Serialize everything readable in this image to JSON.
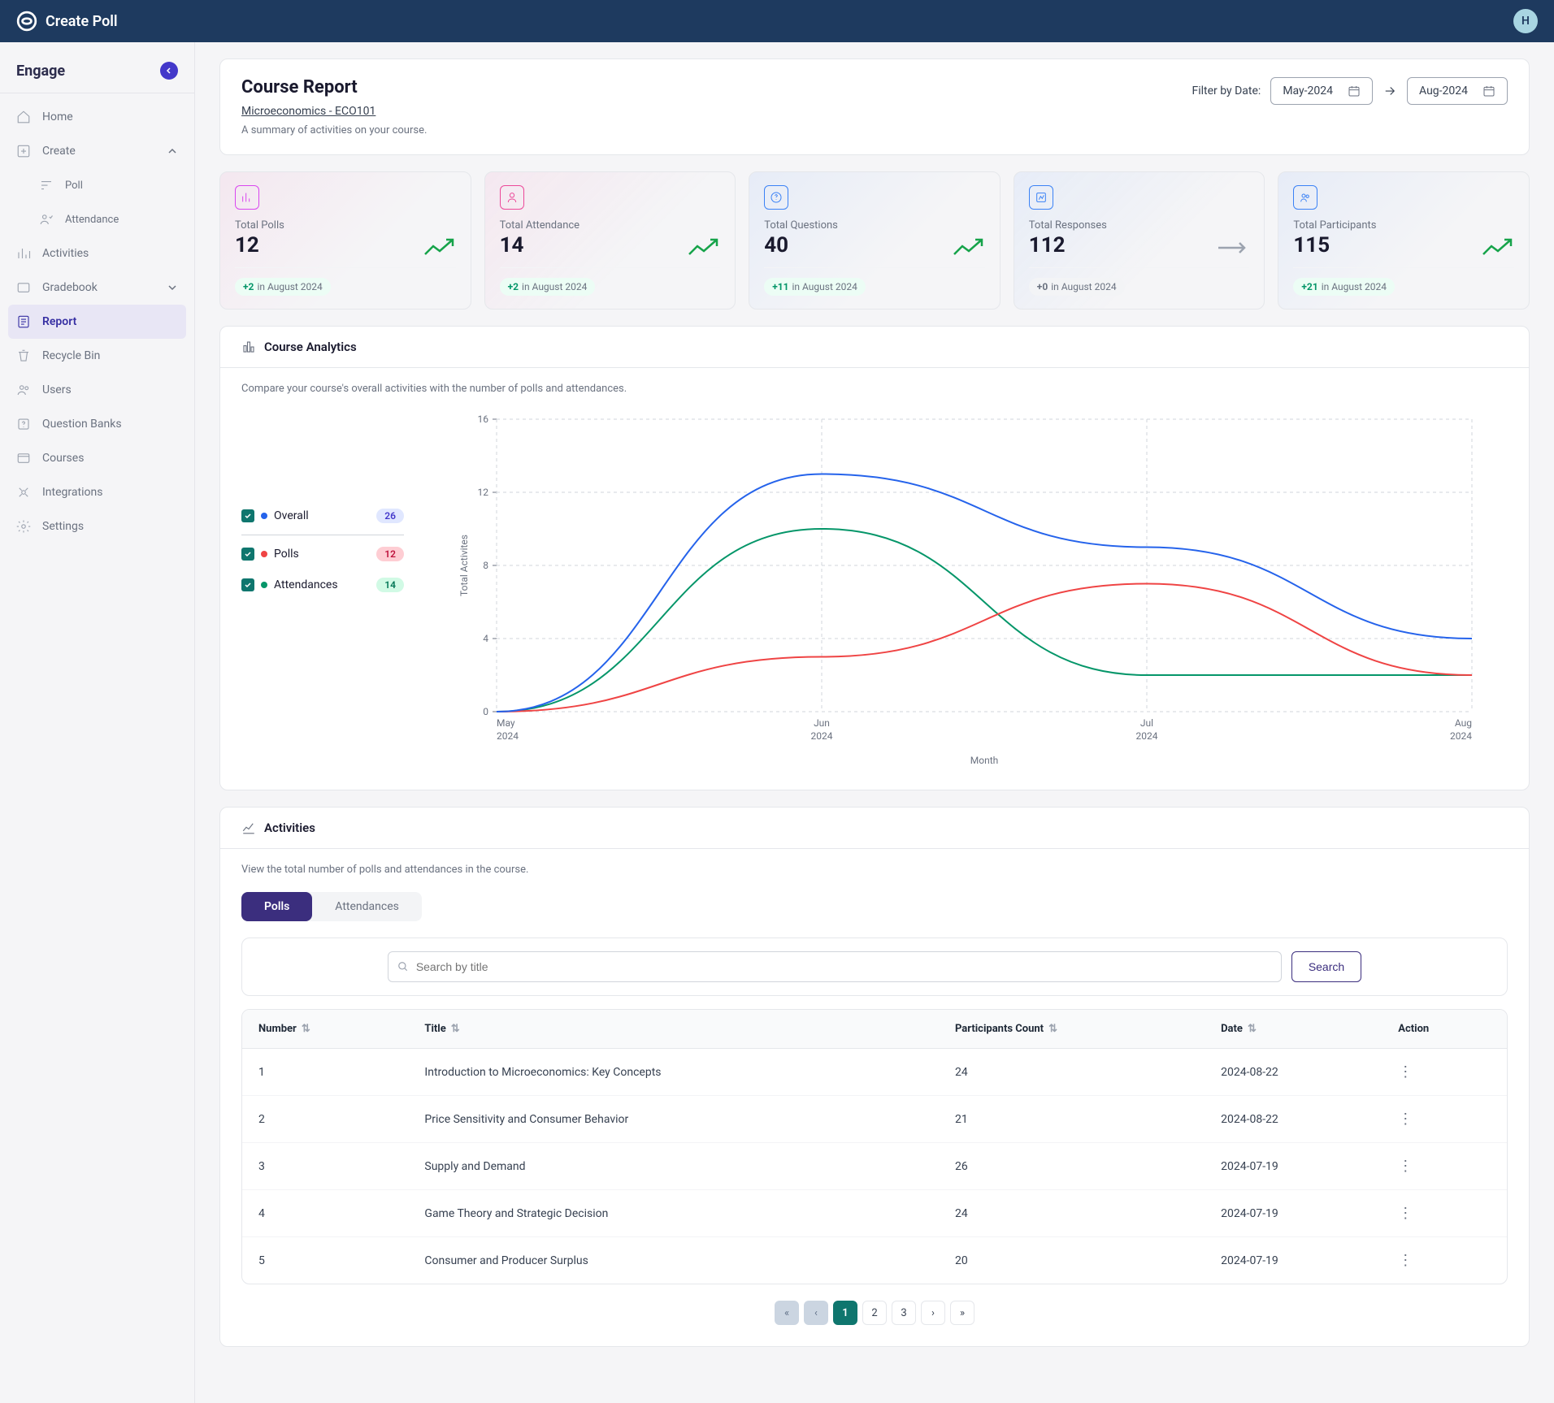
{
  "topbar": {
    "title": "Create Poll",
    "avatar_initial": "H"
  },
  "sidebar": {
    "title": "Engage",
    "items": [
      {
        "label": "Home"
      },
      {
        "label": "Create"
      },
      {
        "label": "Poll"
      },
      {
        "label": "Attendance"
      },
      {
        "label": "Activities"
      },
      {
        "label": "Gradebook"
      },
      {
        "label": "Report"
      },
      {
        "label": "Recycle Bin"
      },
      {
        "label": "Users"
      },
      {
        "label": "Question Banks"
      },
      {
        "label": "Courses"
      },
      {
        "label": "Integrations"
      },
      {
        "label": "Settings"
      }
    ]
  },
  "report": {
    "title": "Course Report",
    "course": "Microeconomics - ECO101",
    "summary": "A summary of activities on your course.",
    "filter_label": "Filter by Date:",
    "date_from": "May-2024",
    "date_to": "Aug-2024"
  },
  "stats": [
    {
      "label": "Total Polls",
      "value": "12",
      "delta": "+2",
      "period": "in August 2024",
      "icon_color": "#d946ef",
      "trend": "up"
    },
    {
      "label": "Total Attendance",
      "value": "14",
      "delta": "+2",
      "period": "in August 2024",
      "icon_color": "#ec4899",
      "trend": "up"
    },
    {
      "label": "Total Questions",
      "value": "40",
      "delta": "+11",
      "period": "in August 2024",
      "icon_color": "#3b82f6",
      "trend": "up"
    },
    {
      "label": "Total Responses",
      "value": "112",
      "delta": "+0",
      "period": "in August 2024",
      "icon_color": "#3b82f6",
      "trend": "flat"
    },
    {
      "label": "Total Participants",
      "value": "115",
      "delta": "+21",
      "period": "in August 2024",
      "icon_color": "#3b82f6",
      "trend": "up"
    }
  ],
  "analytics": {
    "title": "Course Analytics",
    "desc": "Compare your course's overall activities with the number of polls and attendances.",
    "y_label": "Total Activites",
    "x_label": "Month",
    "legend": [
      {
        "name": "Overall",
        "count": "26",
        "color": "#2563eb"
      },
      {
        "name": "Polls",
        "count": "12",
        "color": "#ef4444"
      },
      {
        "name": "Attendances",
        "count": "14",
        "color": "#059669"
      }
    ],
    "chart": {
      "y_ticks": [
        0,
        4,
        8,
        12,
        16
      ],
      "ylim": [
        0,
        16
      ],
      "x_ticks": [
        "May 2024",
        "Jun 2024",
        "Jul 2024",
        "Aug 2024"
      ],
      "grid_color": "#d1d5db",
      "background": "#ffffff",
      "line_width": 2,
      "series": {
        "overall": {
          "color": "#2563eb",
          "values": [
            0,
            13,
            9,
            4
          ]
        },
        "polls": {
          "color": "#ef4444",
          "values": [
            0,
            3,
            7,
            2
          ]
        },
        "attendances": {
          "color": "#059669",
          "values": [
            0,
            10,
            2,
            2
          ]
        }
      }
    }
  },
  "activities": {
    "title": "Activities",
    "desc": "View the total number of polls and attendances in the course.",
    "tabs": [
      "Polls",
      "Attendances"
    ],
    "search_placeholder": "Search by title",
    "search_btn": "Search",
    "columns": [
      "Number",
      "Title",
      "Participants Count",
      "Date",
      "Action"
    ],
    "rows": [
      {
        "num": "1",
        "title": "Introduction to Microeconomics: Key Concepts",
        "count": "24",
        "date": "2024-08-22"
      },
      {
        "num": "2",
        "title": "Price Sensitivity and Consumer Behavior",
        "count": "21",
        "date": "2024-08-22"
      },
      {
        "num": "3",
        "title": "Supply and Demand",
        "count": "26",
        "date": "2024-07-19"
      },
      {
        "num": "4",
        "title": "Game Theory and Strategic Decision",
        "count": "24",
        "date": "2024-07-19"
      },
      {
        "num": "5",
        "title": "Consumer and Producer Surplus",
        "count": "20",
        "date": "2024-07-19"
      }
    ],
    "pages": [
      "1",
      "2",
      "3"
    ]
  }
}
